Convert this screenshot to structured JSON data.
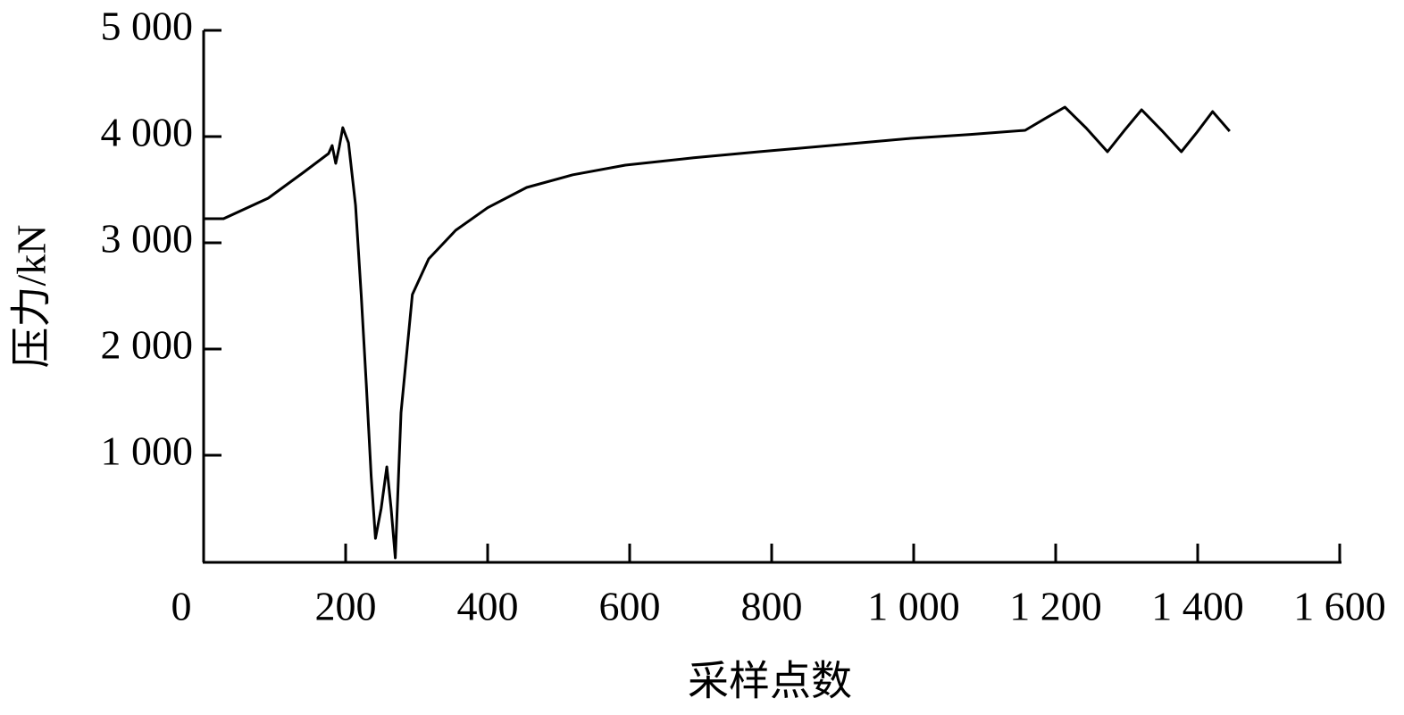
{
  "chart_data": {
    "type": "line",
    "xlabel": "采样点数",
    "ylabel": "压力/kN",
    "xlim": [
      0,
      1600
    ],
    "ylim": [
      0,
      5000
    ],
    "xticks": [
      0,
      200,
      400,
      600,
      800,
      {
        "value": 1000,
        "label": "1 000"
      },
      {
        "value": 1200,
        "label": "1 200"
      },
      {
        "value": 1400,
        "label": "1 400"
      },
      {
        "value": 1600,
        "label": "1 600"
      }
    ],
    "yticks": [
      {
        "value": 1000,
        "label": "1 000"
      },
      {
        "value": 2000,
        "label": "2 000"
      },
      {
        "value": 3000,
        "label": "3 000"
      },
      {
        "value": 4000,
        "label": "4 000"
      },
      {
        "value": 5000,
        "label": "5 000"
      }
    ],
    "grid": false,
    "series": [
      {
        "color": "#000000",
        "x": [
          0,
          28,
          91,
          140,
          176,
          181,
          186,
          191,
          196,
          204,
          214,
          222,
          229,
          236,
          242,
          250,
          258,
          264,
          270,
          278,
          294,
          317,
          355,
          400,
          455,
          520,
          594,
          690,
          782,
          890,
          996,
          1080,
          1157,
          1185,
          1213,
          1243,
          1273,
          1297,
          1321,
          1349,
          1377,
          1399,
          1421,
          1445
        ],
        "values": [
          3227,
          3227,
          3420,
          3660,
          3840,
          3916,
          3748,
          3900,
          4084,
          3941,
          3353,
          2500,
          1672,
          800,
          218,
          500,
          891,
          500,
          34,
          1400,
          2513,
          2849,
          3118,
          3330,
          3521,
          3640,
          3731,
          3800,
          3857,
          3920,
          3983,
          4020,
          4059,
          4170,
          4277,
          4080,
          3857,
          4060,
          4252,
          4060,
          3857,
          4040,
          4235,
          4050
        ]
      }
    ]
  }
}
